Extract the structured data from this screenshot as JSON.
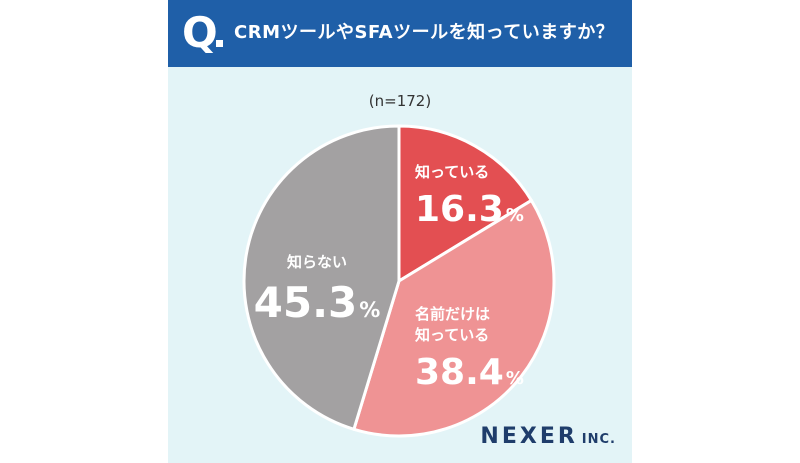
{
  "header": {
    "q_mark": "Q",
    "question": "CRMツールやSFAツールを知っていますか？"
  },
  "sample_size": "(n=172)",
  "brand": {
    "name": "NEXER",
    "suffix": "INC."
  },
  "colors": {
    "header_bg": "#1f5fa8",
    "background": "#e3f4f7",
    "know": "#e34f52",
    "name_only": "#ef9394",
    "dont_know": "#a3a1a2"
  },
  "chart_data": {
    "type": "pie",
    "title": "CRMツールやSFAツールを知っていますか？",
    "subtitle": "(n=172)",
    "unit": "%",
    "slices": [
      {
        "label": [
          "知っている"
        ],
        "value": 16.3,
        "display": "16.3",
        "color": "#e34f52"
      },
      {
        "label": [
          "名前だけは",
          "知っている"
        ],
        "value": 38.4,
        "display": "38.4",
        "color": "#ef9394"
      },
      {
        "label": [
          "知らない"
        ],
        "value": 45.3,
        "display": "45.3",
        "color": "#a3a1a2"
      }
    ]
  }
}
